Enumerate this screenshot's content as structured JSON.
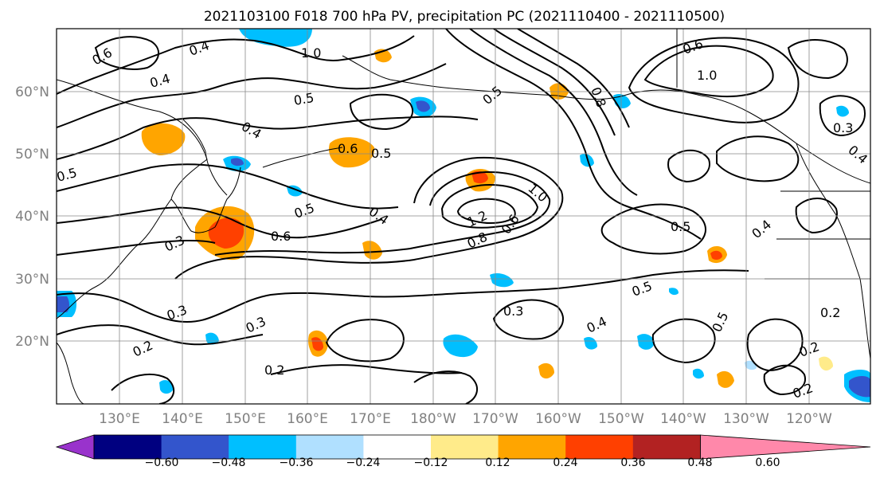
{
  "title": "2021103100 F018 700 hPa PV, precipitation PC (2021110400 - 2021110500)",
  "map": {
    "lat_labels": [
      "60°N",
      "50°N",
      "40°N",
      "30°N",
      "20°N"
    ],
    "lon_labels": [
      "130°E",
      "140°E",
      "150°E",
      "160°E",
      "170°E",
      "180°W",
      "170°W",
      "160°W",
      "150°W",
      "140°W",
      "130°W",
      "120°W"
    ],
    "contour_labels": [
      {
        "id": "c1",
        "text": "0.4"
      },
      {
        "id": "c2",
        "text": "1.0"
      },
      {
        "id": "c3",
        "text": "0.6"
      },
      {
        "id": "c4",
        "text": "0.4"
      },
      {
        "id": "c5",
        "text": "0.5"
      },
      {
        "id": "c6",
        "text": "0.4"
      },
      {
        "id": "c7",
        "text": "0.5"
      },
      {
        "id": "c8",
        "text": "0.6"
      },
      {
        "id": "c9",
        "text": "0.5"
      },
      {
        "id": "c10",
        "text": "0.4"
      },
      {
        "id": "c11",
        "text": "1.2"
      },
      {
        "id": "c12",
        "text": "0.8"
      },
      {
        "id": "c13",
        "text": "0.6"
      },
      {
        "id": "c14",
        "text": "1.0"
      },
      {
        "id": "c15",
        "text": "0.6"
      },
      {
        "id": "c16",
        "text": "0.3"
      },
      {
        "id": "c17",
        "text": "0.5"
      },
      {
        "id": "c18",
        "text": "0.3"
      },
      {
        "id": "c19",
        "text": "0.3"
      },
      {
        "id": "c20",
        "text": "0.2"
      },
      {
        "id": "c21",
        "text": "0.3"
      },
      {
        "id": "c22",
        "text": "0.5"
      },
      {
        "id": "c23",
        "text": "0.4"
      },
      {
        "id": "c24",
        "text": "0.8"
      },
      {
        "id": "c25",
        "text": "1.0"
      },
      {
        "id": "c26",
        "text": "0.6"
      },
      {
        "id": "c27",
        "text": "0.3"
      },
      {
        "id": "c28",
        "text": "0.5"
      },
      {
        "id": "c29",
        "text": "0.2"
      },
      {
        "id": "c30",
        "text": "0.2"
      },
      {
        "id": "c31",
        "text": "0.5"
      },
      {
        "id": "c32",
        "text": "0.4"
      },
      {
        "id": "c33",
        "text": "0.2"
      },
      {
        "id": "c34",
        "text": "0.4"
      },
      {
        "id": "c35",
        "text": "0.5"
      },
      {
        "id": "c36",
        "text": "0.2"
      }
    ]
  },
  "colorbar": {
    "ticks": [
      "−0.60",
      "−0.48",
      "−0.36",
      "−0.24",
      "−0.12",
      "0.12",
      "0.24",
      "0.36",
      "0.48",
      "0.60"
    ],
    "colors": [
      "#9933cc",
      "#000080",
      "#3355cc",
      "#00bfff",
      "#b0e0ff",
      "#ffffff",
      "#ffeb8a",
      "#ffa500",
      "#ff4000",
      "#b22222",
      "#ff88aa"
    ]
  }
}
